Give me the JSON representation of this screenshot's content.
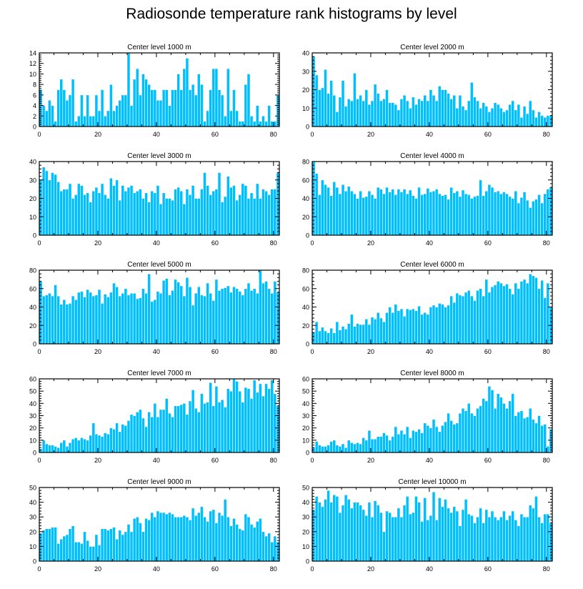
{
  "title": "Radiosonde temperature rank histograms by level",
  "colors": {
    "bar": "#00bfff",
    "bar_edge": "#ffffff",
    "axis": "#000000"
  },
  "chart_data": [
    {
      "type": "bar",
      "title": "Center level 1000 m",
      "xlim": [
        0,
        82
      ],
      "ylim": [
        0,
        14
      ],
      "xticks": [
        0,
        20,
        40,
        60,
        80
      ],
      "yticks": [
        0,
        2,
        4,
        6,
        8,
        10,
        12,
        14
      ],
      "values": [
        7,
        4,
        3,
        5,
        4,
        1,
        7,
        9,
        7,
        5,
        6,
        9,
        1,
        2,
        6,
        2,
        6,
        2,
        2,
        6,
        3,
        7,
        2,
        3,
        8,
        3,
        4,
        5,
        6,
        6,
        14,
        4,
        9,
        11,
        6,
        10,
        9,
        8,
        7,
        7,
        5,
        5,
        7,
        7,
        4,
        7,
        7,
        10,
        7,
        11,
        13,
        7,
        8,
        6,
        10,
        8,
        1,
        3,
        7,
        11,
        11,
        7,
        6,
        2,
        11,
        3,
        7,
        3,
        1,
        1,
        8,
        10,
        2,
        1,
        4,
        1,
        2,
        1,
        4,
        1,
        1,
        6
      ],
      "xlabel": "",
      "ylabel": ""
    },
    {
      "type": "bar",
      "title": "Center level 2000 m",
      "xlim": [
        0,
        82
      ],
      "ylim": [
        0,
        40
      ],
      "xticks": [
        0,
        20,
        40,
        60,
        80
      ],
      "yticks": [
        0,
        10,
        20,
        30,
        40
      ],
      "values": [
        38,
        28,
        20,
        21,
        31,
        18,
        25,
        17,
        8,
        16,
        25,
        11,
        15,
        14,
        29,
        15,
        17,
        14,
        20,
        12,
        14,
        23,
        18,
        14,
        15,
        20,
        13,
        13,
        12,
        9,
        15,
        17,
        14,
        10,
        16,
        12,
        15,
        14,
        17,
        14,
        20,
        17,
        14,
        22,
        20,
        20,
        18,
        15,
        17,
        10,
        17,
        11,
        9,
        14,
        24,
        16,
        14,
        10,
        13,
        11,
        8,
        10,
        13,
        12,
        10,
        8,
        9,
        12,
        14,
        9,
        12,
        5,
        11,
        7,
        14,
        9,
        5,
        8,
        6,
        5,
        6,
        6
      ],
      "xlabel": "",
      "ylabel": ""
    },
    {
      "type": "bar",
      "title": "Center level 3000 m",
      "xlim": [
        0,
        82
      ],
      "ylim": [
        0,
        40
      ],
      "xticks": [
        0,
        20,
        40,
        60,
        80
      ],
      "yticks": [
        0,
        10,
        20,
        30,
        40
      ],
      "values": [
        30,
        37,
        35,
        30,
        34,
        33,
        29,
        24,
        25,
        25,
        28,
        20,
        22,
        28,
        27,
        22,
        23,
        18,
        24,
        26,
        23,
        28,
        22,
        20,
        31,
        27,
        30,
        19,
        27,
        24,
        26,
        27,
        23,
        24,
        25,
        20,
        23,
        18,
        24,
        23,
        27,
        17,
        23,
        20,
        20,
        19,
        25,
        26,
        24,
        17,
        25,
        22,
        27,
        20,
        20,
        25,
        34,
        27,
        22,
        24,
        25,
        34,
        18,
        21,
        32,
        26,
        27,
        19,
        22,
        28,
        27,
        20,
        23,
        20,
        28,
        20,
        25,
        24,
        22,
        25,
        25,
        34
      ],
      "xlabel": "",
      "ylabel": ""
    },
    {
      "type": "bar",
      "title": "Center level 4000 m",
      "xlim": [
        0,
        82
      ],
      "ylim": [
        0,
        80
      ],
      "xticks": [
        0,
        20,
        40,
        60,
        80
      ],
      "yticks": [
        0,
        20,
        40,
        60,
        80
      ],
      "values": [
        80,
        67,
        44,
        60,
        55,
        52,
        43,
        58,
        52,
        45,
        55,
        48,
        53,
        48,
        45,
        40,
        48,
        41,
        42,
        48,
        44,
        40,
        52,
        50,
        45,
        52,
        47,
        50,
        44,
        50,
        47,
        50,
        45,
        49,
        43,
        40,
        52,
        44,
        45,
        51,
        47,
        48,
        50,
        45,
        43,
        44,
        39,
        52,
        46,
        48,
        42,
        49,
        45,
        44,
        40,
        42,
        43,
        60,
        43,
        48,
        55,
        52,
        47,
        48,
        45,
        47,
        45,
        42,
        40,
        48,
        35,
        41,
        47,
        38,
        30,
        37,
        39,
        44,
        35,
        45,
        50,
        52
      ],
      "xlabel": "",
      "ylabel": ""
    },
    {
      "type": "bar",
      "title": "Center level 5000 m",
      "xlim": [
        0,
        82
      ],
      "ylim": [
        0,
        80
      ],
      "xticks": [
        0,
        20,
        40,
        60,
        80
      ],
      "yticks": [
        0,
        20,
        40,
        60,
        80
      ],
      "values": [
        68,
        52,
        53,
        55,
        52,
        64,
        52,
        43,
        48,
        43,
        44,
        52,
        48,
        56,
        57,
        51,
        59,
        56,
        52,
        53,
        59,
        44,
        54,
        51,
        56,
        66,
        62,
        52,
        55,
        60,
        53,
        55,
        55,
        49,
        50,
        60,
        55,
        76,
        46,
        48,
        57,
        55,
        69,
        71,
        53,
        58,
        70,
        67,
        63,
        52,
        72,
        62,
        42,
        55,
        62,
        53,
        52,
        66,
        55,
        47,
        70,
        58,
        60,
        61,
        63,
        56,
        62,
        60,
        57,
        53,
        60,
        66,
        58,
        60,
        55,
        81,
        66,
        68,
        60,
        55,
        68,
        56
      ],
      "xlabel": "",
      "ylabel": ""
    },
    {
      "type": "bar",
      "title": "Center level 6000 m",
      "xlim": [
        0,
        82
      ],
      "ylim": [
        0,
        80
      ],
      "xticks": [
        0,
        20,
        40,
        60,
        80
      ],
      "yticks": [
        0,
        20,
        40,
        60,
        80
      ],
      "values": [
        13,
        24,
        14,
        18,
        14,
        12,
        17,
        12,
        24,
        15,
        19,
        16,
        22,
        32,
        19,
        22,
        21,
        21,
        27,
        21,
        29,
        27,
        34,
        28,
        24,
        34,
        40,
        34,
        43,
        36,
        38,
        30,
        38,
        37,
        38,
        36,
        41,
        32,
        34,
        32,
        40,
        42,
        40,
        44,
        43,
        40,
        42,
        52,
        45,
        55,
        53,
        52,
        56,
        58,
        52,
        47,
        58,
        60,
        52,
        70,
        56,
        62,
        64,
        68,
        66,
        63,
        65,
        60,
        54,
        66,
        60,
        68,
        70,
        66,
        76,
        74,
        72,
        60,
        69,
        50,
        66,
        40
      ],
      "xlabel": "",
      "ylabel": ""
    },
    {
      "type": "bar",
      "title": "Center level 7000 m",
      "xlim": [
        0,
        82
      ],
      "ylim": [
        0,
        60
      ],
      "xticks": [
        0,
        20,
        40,
        60,
        80
      ],
      "yticks": [
        0,
        10,
        20,
        30,
        40,
        50,
        60
      ],
      "values": [
        3,
        10,
        7,
        6,
        6,
        5,
        4,
        8,
        10,
        5,
        8,
        11,
        12,
        10,
        12,
        11,
        10,
        14,
        24,
        15,
        14,
        13,
        16,
        15,
        20,
        19,
        24,
        17,
        23,
        22,
        26,
        31,
        30,
        33,
        35,
        28,
        21,
        33,
        29,
        40,
        29,
        35,
        35,
        44,
        32,
        29,
        38,
        38,
        39,
        40,
        31,
        42,
        51,
        36,
        33,
        48,
        40,
        41,
        57,
        38,
        54,
        41,
        43,
        37,
        52,
        50,
        63,
        58,
        50,
        41,
        53,
        52,
        44,
        59,
        49,
        56,
        46,
        56,
        52,
        59,
        48,
        38
      ],
      "xlabel": "",
      "ylabel": ""
    },
    {
      "type": "bar",
      "title": "Center level 8000 m",
      "xlim": [
        0,
        82
      ],
      "ylim": [
        0,
        60
      ],
      "xticks": [
        0,
        20,
        40,
        60,
        80
      ],
      "yticks": [
        0,
        10,
        20,
        30,
        40,
        50,
        60
      ],
      "values": [
        4,
        9,
        6,
        5,
        5,
        6,
        9,
        10,
        6,
        5,
        7,
        4,
        10,
        8,
        7,
        8,
        7,
        12,
        10,
        18,
        11,
        11,
        13,
        13,
        16,
        14,
        10,
        13,
        21,
        15,
        18,
        15,
        21,
        12,
        18,
        17,
        19,
        16,
        24,
        22,
        20,
        27,
        21,
        17,
        22,
        25,
        32,
        26,
        23,
        24,
        32,
        36,
        34,
        40,
        32,
        30,
        36,
        38,
        44,
        42,
        54,
        51,
        36,
        48,
        45,
        40,
        36,
        42,
        48,
        30,
        33,
        34,
        28,
        29,
        36,
        27,
        24,
        30,
        22,
        23,
        5,
        19
      ],
      "xlabel": "",
      "ylabel": ""
    },
    {
      "type": "bar",
      "title": "Center level 9000 m",
      "xlim": [
        0,
        82
      ],
      "ylim": [
        0,
        50
      ],
      "xticks": [
        0,
        20,
        40,
        60,
        80
      ],
      "yticks": [
        0,
        10,
        20,
        30,
        40,
        50
      ],
      "values": [
        19,
        21,
        22,
        22,
        23,
        23,
        12,
        15,
        17,
        18,
        22,
        24,
        13,
        13,
        12,
        20,
        14,
        10,
        10,
        18,
        11,
        22,
        22,
        21,
        22,
        23,
        15,
        21,
        18,
        20,
        25,
        20,
        29,
        30,
        26,
        20,
        29,
        28,
        33,
        30,
        34,
        33,
        33,
        32,
        33,
        32,
        30,
        30,
        30,
        31,
        30,
        28,
        36,
        31,
        33,
        37,
        30,
        27,
        34,
        35,
        26,
        33,
        31,
        42,
        30,
        24,
        29,
        25,
        22,
        21,
        32,
        30,
        25,
        23,
        27,
        29,
        20,
        17,
        19,
        13,
        17,
        13
      ],
      "xlabel": "",
      "ylabel": ""
    },
    {
      "type": "bar",
      "title": "Center level 10000 m",
      "xlim": [
        0,
        82
      ],
      "ylim": [
        0,
        50
      ],
      "xticks": [
        0,
        20,
        40,
        60,
        80
      ],
      "yticks": [
        0,
        10,
        20,
        30,
        40,
        50
      ],
      "values": [
        35,
        44,
        40,
        37,
        42,
        48,
        40,
        45,
        44,
        33,
        38,
        45,
        42,
        36,
        40,
        40,
        38,
        35,
        31,
        40,
        30,
        41,
        38,
        33,
        20,
        34,
        33,
        30,
        30,
        36,
        30,
        38,
        44,
        32,
        33,
        44,
        40,
        27,
        43,
        28,
        31,
        47,
        28,
        43,
        37,
        42,
        36,
        33,
        37,
        34,
        24,
        35,
        42,
        32,
        31,
        26,
        30,
        36,
        26,
        35,
        30,
        34,
        30,
        28,
        30,
        34,
        28,
        31,
        34,
        28,
        24,
        32,
        30,
        30,
        38,
        36,
        44,
        30,
        26,
        32,
        32,
        26
      ],
      "xlabel": "",
      "ylabel": ""
    }
  ]
}
